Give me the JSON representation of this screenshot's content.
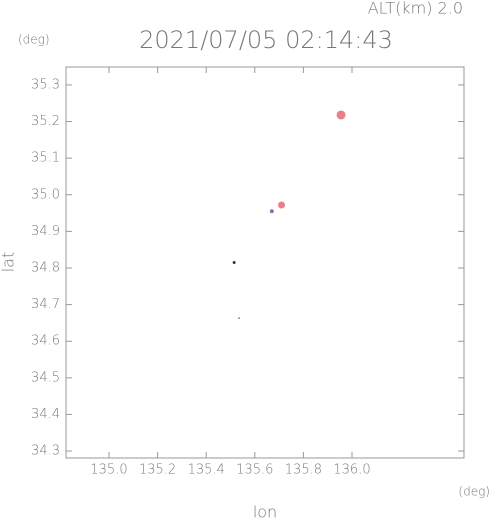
{
  "chart_data": {
    "type": "scatter",
    "title": "2021/07/05 02:14:43",
    "annotation": "ALT(km) 2.0",
    "y_unit": "(deg)",
    "x_unit": "(deg)",
    "xlabel": "lon",
    "ylabel": "lat",
    "x": [
      135.955,
      135.71,
      135.67,
      135.515,
      135.535
    ],
    "values": [
      35.218,
      34.972,
      34.955,
      34.815,
      34.663
    ],
    "colors": [
      "#e8808c",
      "#e8808c",
      "#8a6fa8",
      "#2a2f6a",
      "#9a8a9a"
    ],
    "xlim": [
      134.823,
      136.461
    ],
    "ylim": [
      34.281,
      35.349
    ],
    "xticks": [
      {
        "value": 135.0,
        "label": "135.0"
      },
      135.2,
      135.4,
      135.6,
      135.8,
      {
        "value": 136.0,
        "label": "136.0"
      }
    ],
    "yticks": [
      34.3,
      34.4,
      34.5,
      34.6,
      34.7,
      34.8,
      34.9,
      {
        "value": 35.0,
        "label": "35.0"
      },
      35.1,
      35.2,
      35.3
    ]
  }
}
